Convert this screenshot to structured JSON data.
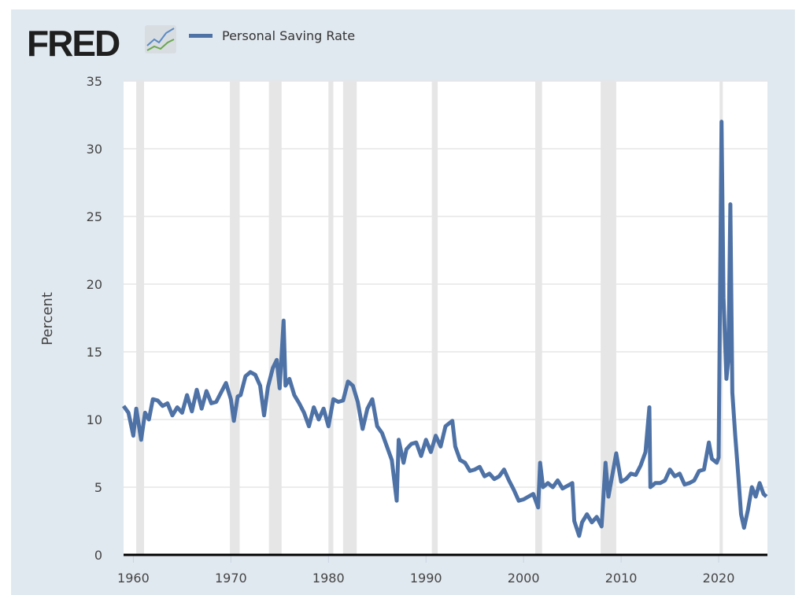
{
  "header": {
    "logo_text": "FRED",
    "legend_label": "Personal Saving Rate"
  },
  "colors": {
    "series": "#4e72a6",
    "recession": "#e6e6e6",
    "background": "#e1e9f0"
  },
  "chart_data": {
    "type": "line",
    "title": "",
    "xlabel": "",
    "ylabel": "Percent",
    "xlim": [
      1959,
      2025
    ],
    "ylim": [
      0,
      35
    ],
    "grid": true,
    "legend_placement": "top-left",
    "x_ticks": [
      "1960",
      "1970",
      "1980",
      "1990",
      "2000",
      "2010",
      "2020"
    ],
    "y_ticks": [
      "0",
      "5",
      "10",
      "15",
      "20",
      "25",
      "30",
      "35"
    ],
    "recessions": [
      [
        1960.3,
        1961.1
      ],
      [
        1969.9,
        1970.9
      ],
      [
        1973.9,
        1975.2
      ],
      [
        1980.0,
        1980.5
      ],
      [
        1981.5,
        1982.9
      ],
      [
        1990.6,
        1991.2
      ],
      [
        2001.2,
        2001.9
      ],
      [
        2007.9,
        2009.5
      ],
      [
        2020.1,
        2020.3
      ]
    ],
    "series": [
      {
        "name": "Personal Saving Rate",
        "x": [
          1959,
          1959.5,
          1960,
          1960.3,
          1960.8,
          1961.2,
          1961.6,
          1962,
          1962.5,
          1963,
          1963.5,
          1964,
          1964.5,
          1965,
          1965.5,
          1966,
          1966.5,
          1967,
          1967.5,
          1968,
          1968.5,
          1969,
          1969.5,
          1970,
          1970.3,
          1970.7,
          1971,
          1971.5,
          1972,
          1972.5,
          1973,
          1973.4,
          1973.8,
          1974.3,
          1974.7,
          1975,
          1975.4,
          1975.6,
          1976,
          1976.5,
          1977,
          1977.5,
          1978,
          1978.5,
          1979,
          1979.5,
          1980,
          1980.5,
          1981,
          1981.5,
          1982,
          1982.5,
          1983,
          1983.5,
          1984,
          1984.5,
          1985,
          1985.5,
          1986,
          1986.5,
          1987,
          1987.2,
          1987.7,
          1988,
          1988.5,
          1989,
          1989.5,
          1990,
          1990.5,
          1991,
          1991.5,
          1992,
          1992.7,
          1993,
          1993.5,
          1994,
          1994.5,
          1995,
          1995.5,
          1996,
          1996.5,
          1997,
          1997.5,
          1998,
          1998.5,
          1999,
          1999.5,
          2000,
          2000.5,
          2001,
          2001.5,
          2001.7,
          2002,
          2002.5,
          2003,
          2003.5,
          2004,
          2004.5,
          2005,
          2005.2,
          2005.7,
          2006,
          2006.5,
          2007,
          2007.5,
          2008,
          2008.4,
          2008.7,
          2009,
          2009.5,
          2010,
          2010.5,
          2011,
          2011.5,
          2012,
          2012.5,
          2012.9,
          2013,
          2013.5,
          2014,
          2014.5,
          2015,
          2015.5,
          2016,
          2016.5,
          2017,
          2017.5,
          2018,
          2018.5,
          2019,
          2019.3,
          2019.8,
          2020,
          2020.3,
          2020.5,
          2020.8,
          2021,
          2021.2,
          2021.4,
          2021.7,
          2022,
          2022.3,
          2022.6,
          2023,
          2023.4,
          2023.8,
          2024.2,
          2024.6,
          2024.9
        ],
        "values": [
          11.0,
          10.5,
          8.8,
          10.8,
          8.5,
          10.5,
          10.0,
          11.5,
          11.4,
          11.0,
          11.2,
          10.3,
          10.9,
          10.5,
          11.8,
          10.6,
          12.2,
          10.8,
          12.1,
          11.2,
          11.3,
          12.0,
          12.7,
          11.5,
          9.9,
          11.7,
          11.8,
          13.2,
          13.5,
          13.3,
          12.5,
          10.3,
          12.4,
          13.8,
          14.4,
          12.3,
          17.3,
          12.5,
          13.0,
          11.8,
          11.2,
          10.5,
          9.5,
          10.9,
          10.0,
          10.8,
          9.5,
          11.5,
          11.3,
          11.4,
          12.8,
          12.5,
          11.3,
          9.3,
          10.8,
          11.5,
          9.5,
          9.0,
          8.0,
          7.0,
          4.0,
          8.5,
          6.8,
          7.8,
          8.2,
          8.3,
          7.3,
          8.5,
          7.6,
          8.8,
          8.0,
          9.5,
          9.9,
          8.0,
          7.0,
          6.8,
          6.2,
          6.3,
          6.5,
          5.8,
          6.0,
          5.6,
          5.8,
          6.3,
          5.5,
          4.8,
          4.0,
          4.1,
          4.3,
          4.5,
          3.5,
          6.8,
          5.0,
          5.3,
          5.0,
          5.5,
          4.9,
          5.1,
          5.3,
          2.5,
          1.4,
          2.4,
          3.0,
          2.4,
          2.8,
          2.1,
          6.8,
          4.3,
          5.5,
          7.5,
          5.4,
          5.6,
          6.0,
          5.9,
          6.6,
          7.6,
          10.9,
          5.0,
          5.3,
          5.3,
          5.5,
          6.3,
          5.8,
          6.0,
          5.2,
          5.3,
          5.5,
          6.2,
          6.3,
          8.3,
          7.1,
          6.8,
          7.2,
          32.0,
          19.0,
          13.0,
          14.5,
          25.9,
          12.0,
          8.8,
          6.0,
          3.0,
          2.0,
          3.3,
          5.0,
          4.3,
          5.3,
          4.5,
          4.3
        ]
      }
    ]
  }
}
